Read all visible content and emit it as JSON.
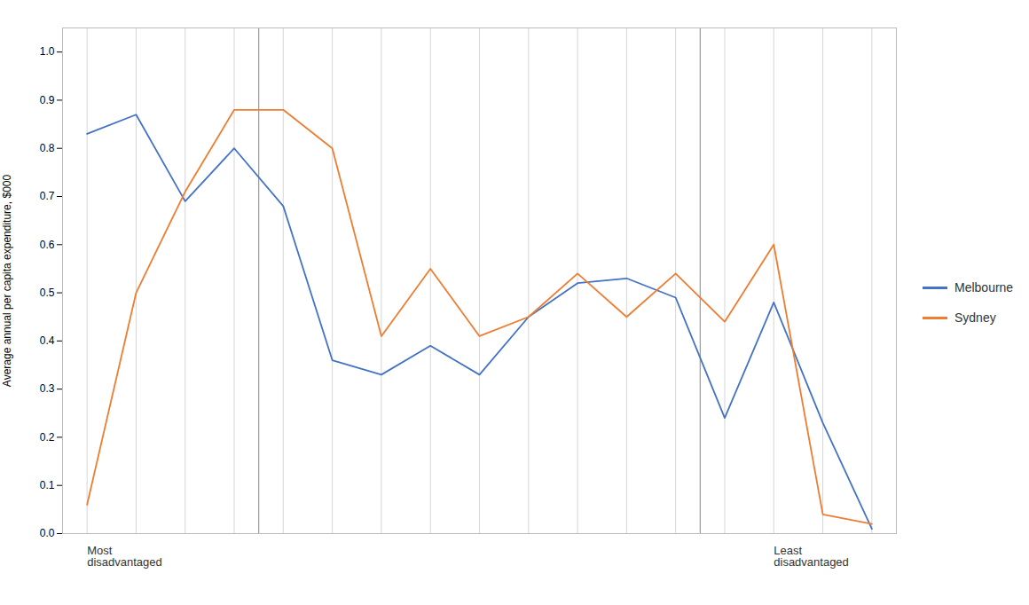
{
  "chart_data": {
    "type": "line",
    "categories": [
      null,
      null,
      null,
      null,
      null,
      null,
      null,
      null,
      null,
      null,
      null,
      null,
      null,
      null,
      null,
      null,
      null
    ],
    "series": [
      {
        "name": "Melbourne",
        "color": "#4472C4",
        "values": [
          0.83,
          0.87,
          0.69,
          0.8,
          0.68,
          0.36,
          0.33,
          0.39,
          0.33,
          0.45,
          0.52,
          0.53,
          0.49,
          0.24,
          0.48,
          0.23,
          0.01
        ]
      },
      {
        "name": "Sydney",
        "color": "#ED7D31",
        "values": [
          0.06,
          0.5,
          0.71,
          0.88,
          0.88,
          0.8,
          0.41,
          0.55,
          0.41,
          0.45,
          0.54,
          0.45,
          0.54,
          0.44,
          0.6,
          0.04,
          0.02
        ]
      }
    ],
    "ylabel": "Average annual per capita expenditure, $000",
    "ylim": [
      0,
      1.05
    ],
    "yticks": [
      {
        "value": 0,
        "label": "0.0"
      },
      0.1,
      0.2,
      0.3,
      0.4,
      0.5,
      0.6,
      0.7,
      0.8,
      0.9,
      {
        "value": 1,
        "label": "1.0"
      }
    ],
    "vlines": [
      3.5,
      12.5
    ],
    "annotations": [
      {
        "text": "Most\ndisadvantaged",
        "x": 0
      },
      {
        "text": "Least\ndisadvantaged",
        "x": 14
      }
    ],
    "grid": "x",
    "legend": "right",
    "tick_labels": "y"
  }
}
